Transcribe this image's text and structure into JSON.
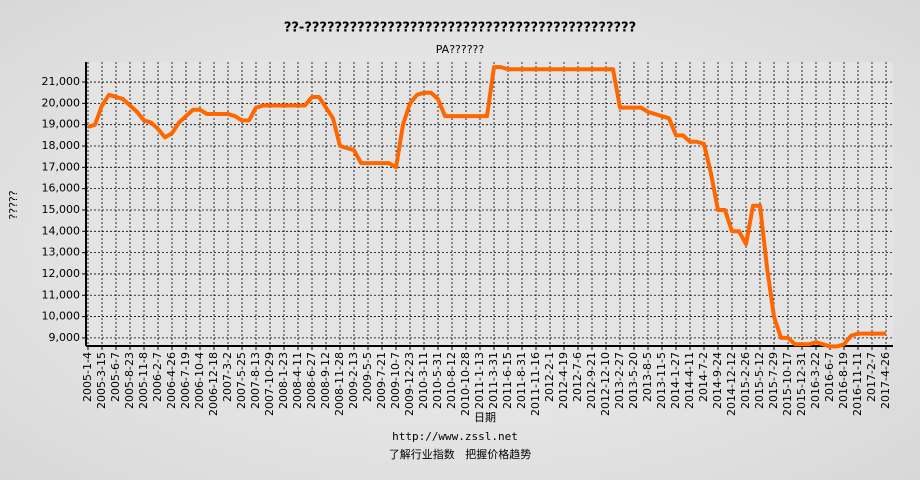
{
  "chart_data": {
    "type": "line",
    "title": "??-????????????????????????????????????????????",
    "subtitle": "PA??????",
    "y_label": "?????",
    "x_label": "日期",
    "url": "http://www.zssl.net",
    "footer": "了解行业指数   把握价格趋势",
    "color": "#ff6600",
    "grid": true,
    "categories": [
      "2005-1-4",
      null,
      "2005-3-15",
      null,
      "2005-6-7",
      null,
      "2005-8-23",
      null,
      "2005-11-8",
      null,
      "2006-2-7",
      null,
      "2006-4-26",
      null,
      "2006-7-19",
      null,
      "2006-10-4",
      null,
      "2006-12-18",
      null,
      "2007-3-2",
      null,
      "2007-5-25",
      null,
      "2007-8-13",
      null,
      "2007-10-29",
      null,
      "2008-1-23",
      null,
      "2008-4-11",
      null,
      "2008-6-27",
      null,
      "2008-9-12",
      null,
      "2008-11-28",
      null,
      "2009-2-13",
      null,
      "2009-5-5",
      null,
      "2009-7-21",
      null,
      "2009-10-7",
      null,
      "2009-12-23",
      null,
      "2010-3-11",
      null,
      "2010-5-31",
      null,
      "2010-8-12",
      null,
      "2010-10-28",
      null,
      "2011-1-13",
      null,
      "2011-3-31",
      null,
      "2011-6-15",
      null,
      "2011-8-31",
      null,
      "2011-11-16",
      null,
      "2012-2-1",
      null,
      "2012-4-19",
      null,
      "2012-7-6",
      null,
      "2012-9-21",
      null,
      "2012-12-10",
      null,
      "2013-2-27",
      null,
      "2013-5-20",
      null,
      "2013-8-5",
      null,
      "2013-11-5",
      null,
      "2014-1-27",
      null,
      "2014-4-11",
      null,
      "2014-7-2",
      null,
      "2014-9-24",
      null,
      "2014-12-12",
      null,
      "2015-2-26",
      null,
      "2015-5-12",
      null,
      "2015-7-29",
      null,
      "2015-10-17",
      null,
      "2015-12-31",
      null,
      "2016-3-22",
      null,
      "2016-6-7",
      null,
      "2016-8-19",
      null,
      "2016-11-11",
      null,
      "2017-2-7",
      null,
      "2017-4-26"
    ],
    "values": [
      18900,
      19000,
      19900,
      20400,
      20300,
      20200,
      19900,
      19600,
      19200,
      19100,
      18800,
      18400,
      18600,
      19100,
      19400,
      19700,
      19700,
      19500,
      19500,
      19500,
      19500,
      19400,
      19200,
      19200,
      19800,
      19900,
      19900,
      19900,
      19900,
      19900,
      19900,
      19900,
      20300,
      20300,
      19800,
      19300,
      18000,
      17900,
      17800,
      17200,
      17200,
      17200,
      17200,
      17200,
      17000,
      19000,
      20000,
      20400,
      20500,
      20500,
      20200,
      19400,
      19400,
      19400,
      19400,
      19400,
      19400,
      19400,
      21700,
      21700,
      21600,
      21600,
      21600,
      21600,
      21600,
      21600,
      21600,
      21600,
      21600,
      21600,
      21600,
      21600,
      21600,
      21600,
      21600,
      21600,
      19800,
      19800,
      19800,
      19800,
      19600,
      19500,
      19400,
      19300,
      18500,
      18500,
      18200,
      18200,
      18100,
      16700,
      15000,
      15000,
      14000,
      14000,
      13400,
      15200,
      15200,
      12300,
      10000,
      9000,
      9000,
      8700,
      8700,
      8700,
      8800,
      8700,
      8600,
      8600,
      8700,
      9100,
      9200,
      9200,
      9200,
      9200,
      9200
    ],
    "ylim": [
      8620,
      21940
    ],
    "yticks": [
      {
        "value": 9000,
        "label": "9,000"
      },
      {
        "value": 10000,
        "label": "10,000"
      },
      {
        "value": 11000,
        "label": "11,000"
      },
      {
        "value": 12000,
        "label": "12,000"
      },
      {
        "value": 13000,
        "label": "13,000"
      },
      {
        "value": 14000,
        "label": "14,000"
      },
      {
        "value": 15000,
        "label": "15,000"
      },
      {
        "value": 16000,
        "label": "16,000"
      },
      {
        "value": 17000,
        "label": "17,000"
      },
      {
        "value": 18000,
        "label": "18,000"
      },
      {
        "value": 19000,
        "label": "19,000"
      },
      {
        "value": 20000,
        "label": "20,000"
      },
      {
        "value": 21000,
        "label": "21,000"
      }
    ]
  }
}
